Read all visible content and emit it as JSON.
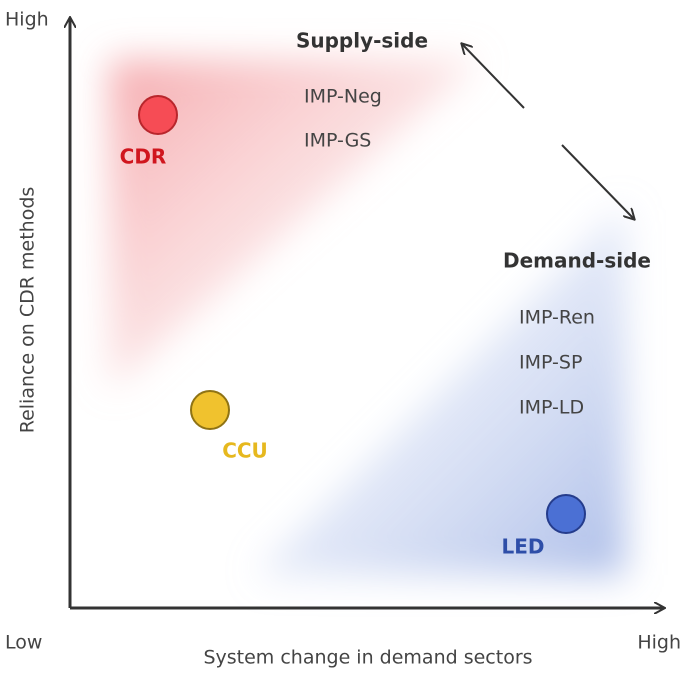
{
  "axes": {
    "y_label": "Reliance on CDR methods",
    "x_label": "System change in demand sectors",
    "y_high": "High",
    "origin": "Low",
    "x_high": "High"
  },
  "groups": [
    {
      "title": "Supply-side",
      "items": [
        "IMP-Neg",
        "IMP-GS"
      ]
    },
    {
      "title": "Demand-side",
      "items": [
        "IMP-Ren",
        "IMP-SP",
        "IMP-LD"
      ]
    }
  ],
  "nodes": [
    {
      "label": "CDR"
    },
    {
      "label": "CCU"
    },
    {
      "label": "LED"
    }
  ]
}
